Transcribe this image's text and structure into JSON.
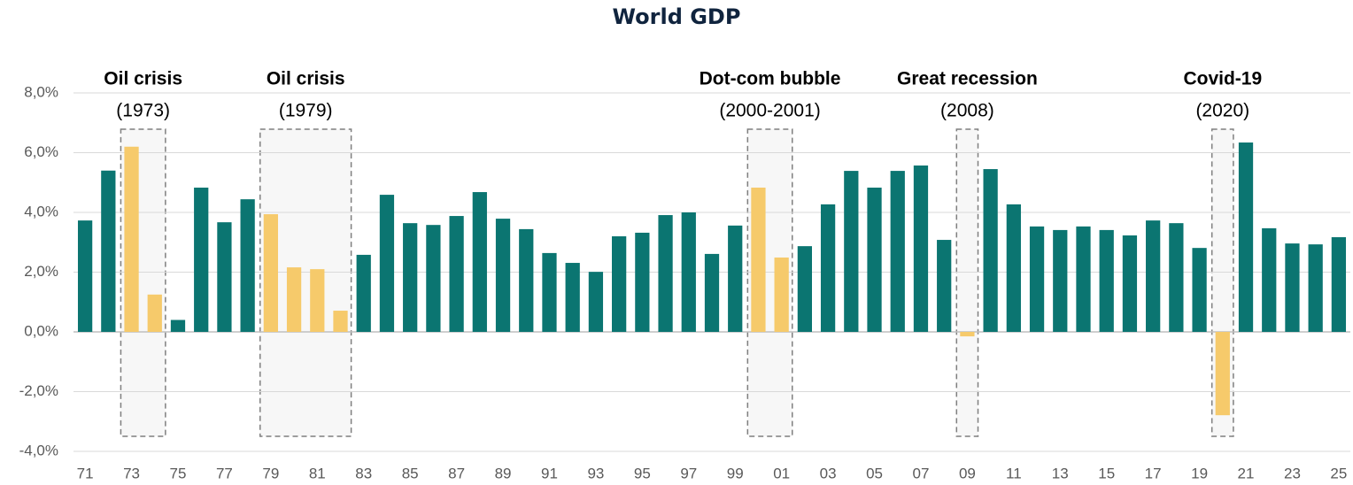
{
  "chart_data": {
    "type": "bar",
    "title": "World GDP",
    "categories": [
      "71",
      null,
      "73",
      null,
      "75",
      null,
      "77",
      null,
      "79",
      null,
      "81",
      null,
      "83",
      null,
      "85",
      null,
      "87",
      null,
      "89",
      null,
      "91",
      null,
      "93",
      null,
      "95",
      null,
      "97",
      null,
      "99",
      null,
      "01",
      null,
      "03",
      null,
      "05",
      null,
      "07",
      null,
      "09",
      null,
      "11",
      null,
      "13",
      null,
      "15",
      null,
      "17",
      null,
      "19",
      null,
      "21",
      null,
      "23",
      null,
      "25"
    ],
    "values": [
      3.73,
      5.4,
      6.2,
      1.25,
      0.4,
      4.83,
      3.67,
      4.44,
      3.94,
      2.16,
      2.1,
      0.71,
      2.58,
      4.59,
      3.64,
      3.58,
      3.88,
      4.68,
      3.79,
      3.44,
      2.64,
      2.31,
      2.01,
      3.2,
      3.32,
      3.91,
      4.0,
      2.61,
      3.56,
      4.83,
      2.49,
      2.87,
      4.27,
      5.39,
      4.83,
      5.39,
      5.57,
      3.08,
      -0.15,
      5.45,
      4.27,
      3.53,
      3.41,
      3.53,
      3.41,
      3.23,
      3.73,
      3.64,
      2.81,
      -2.79,
      6.34,
      3.47,
      2.96,
      2.93,
      3.17
    ],
    "colors": [
      "#0b7571",
      "#0b7571",
      "#f6ca6b",
      "#f6ca6b",
      "#0b7571",
      "#0b7571",
      "#0b7571",
      "#0b7571",
      "#f6ca6b",
      "#f6ca6b",
      "#f6ca6b",
      "#f6ca6b",
      "#0b7571",
      "#0b7571",
      "#0b7571",
      "#0b7571",
      "#0b7571",
      "#0b7571",
      "#0b7571",
      "#0b7571",
      "#0b7571",
      "#0b7571",
      "#0b7571",
      "#0b7571",
      "#0b7571",
      "#0b7571",
      "#0b7571",
      "#0b7571",
      "#0b7571",
      "#f6ca6b",
      "#f6ca6b",
      "#0b7571",
      "#0b7571",
      "#0b7571",
      "#0b7571",
      "#0b7571",
      "#0b7571",
      "#0b7571",
      "#f6ca6b",
      "#0b7571",
      "#0b7571",
      "#0b7571",
      "#0b7571",
      "#0b7571",
      "#0b7571",
      "#0b7571",
      "#0b7571",
      "#0b7571",
      "#0b7571",
      "#f6ca6b",
      "#0b7571",
      "#0b7571",
      "#0b7571",
      "#0b7571",
      "#0b7571"
    ],
    "highlight_color": "#f6ca6b",
    "ylim": [
      -4,
      8
    ],
    "yticks": [
      {
        "value": -4,
        "label": "-4,0%"
      },
      {
        "value": -2,
        "label": "-2,0%"
      },
      {
        "value": 0,
        "label": "0,0%"
      },
      {
        "value": 2,
        "label": "2,0%"
      },
      {
        "value": 4,
        "label": "4,0%"
      },
      {
        "value": 6,
        "label": "6,0%"
      },
      {
        "value": 8,
        "label": "8,0%"
      }
    ],
    "grid": true,
    "annotations": [
      {
        "text": "Oil crisis",
        "subtext": "(1973)"
      },
      {
        "text": "Oil crisis",
        "subtext": "(1979)"
      },
      {
        "text": "Dot-com bubble",
        "subtext": "(2000-2001)"
      },
      {
        "text": "Great recession",
        "subtext": "(2008)"
      },
      {
        "text": "Covid-19",
        "subtext": "(2020)"
      }
    ]
  }
}
